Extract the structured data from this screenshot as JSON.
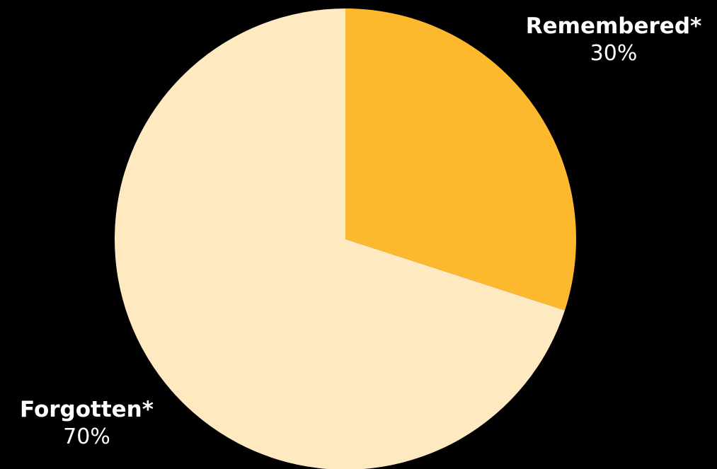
{
  "chart_data": {
    "type": "pie",
    "title": "",
    "slices": [
      {
        "label": "Remembered*",
        "value": 30,
        "value_label": "30%",
        "color": "#FDB92E"
      },
      {
        "label": "Forgotten*",
        "value": 70,
        "value_label": "70%",
        "color": "#FEE9C0"
      }
    ],
    "start_angle": "12 o'clock",
    "direction": "clockwise",
    "legend": "none",
    "background": "#000000"
  }
}
